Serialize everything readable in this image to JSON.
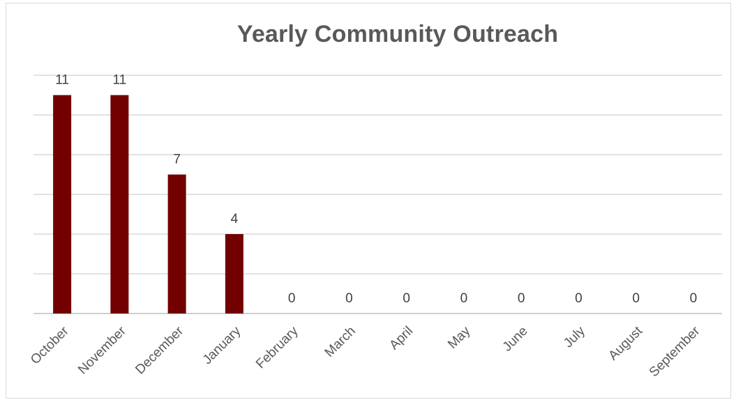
{
  "chart_data": {
    "type": "bar",
    "title": "Yearly Community Outreach",
    "categories": [
      "October",
      "November",
      "December",
      "January",
      "February",
      "March",
      "April",
      "May",
      "June",
      "July",
      "August",
      "September"
    ],
    "values": [
      11,
      11,
      7,
      4,
      0,
      0,
      0,
      0,
      0,
      0,
      0,
      0
    ],
    "ylim": [
      0,
      12
    ],
    "grid": true,
    "legend": "none",
    "bar_color": "#720000",
    "data_labels": true
  }
}
